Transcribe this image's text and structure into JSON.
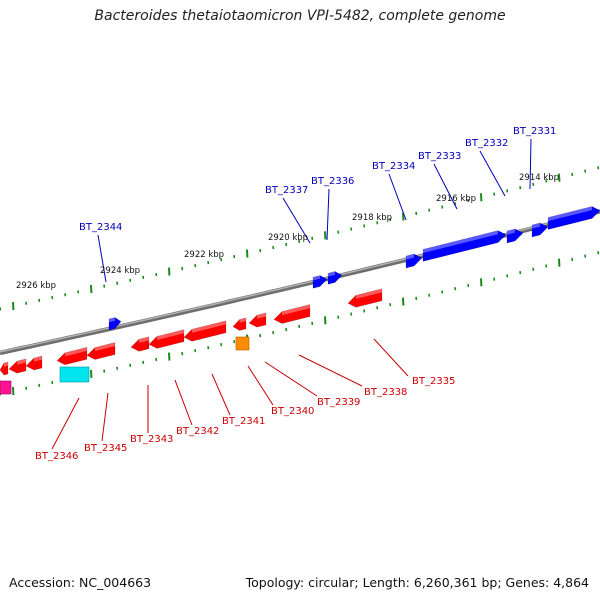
{
  "title": "Bacteroides thetaiotaomicron VPI-5482, complete genome",
  "accession_text": "Accession: NC_004663",
  "topology_text": "Topology: circular; Length: 6,260,361 bp; Genes: 4,864",
  "colors": {
    "forward_gene": "#0000ff",
    "reverse_gene": "#ff0000",
    "label_forward": "#0000bb",
    "label_reverse": "#cc0000",
    "backbone": "#888888",
    "tick": "#1a8a1a",
    "orange_feature": "#ff8c00",
    "cyan_feature": "#00e5ee",
    "magenta_feature": "#ff1493"
  },
  "scale_labels": [
    "2914 kbp",
    "2916 kbp",
    "2918 kbp",
    "2920 kbp",
    "2922 kbp",
    "2924 kbp",
    "2926 kbp"
  ],
  "forward_gene_labels": [
    "BT_2331",
    "BT_2332",
    "BT_2333",
    "BT_2334",
    "BT_2336",
    "BT_2337",
    "BT_2344"
  ],
  "reverse_gene_labels": [
    "BT_2335",
    "BT_2338",
    "BT_2339",
    "BT_2340",
    "BT_2341",
    "BT_2342",
    "BT_2343",
    "BT_2345",
    "BT_2346"
  ]
}
